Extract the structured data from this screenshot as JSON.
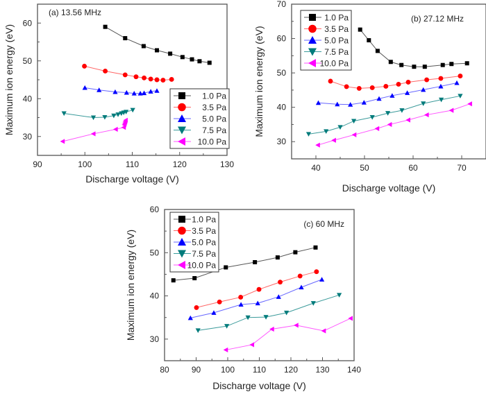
{
  "figure": {
    "series_colors": {
      "1.0 Pa": "#000000",
      "3.5 Pa": "#ff0000",
      "5.0 Pa": "#0000ff",
      "7.5 Pa": "#007b7b",
      "10.0 Pa": "#ff00ff"
    },
    "series_line_colors": {
      "1.0 Pa": "#555555",
      "3.5 Pa": "#ff6666",
      "5.0 Pa": "#6666ff",
      "7.5 Pa": "#3a9a9a",
      "10.0 Pa": "#ff55ff"
    }
  },
  "chart_data": [
    {
      "type": "line",
      "title": "(a) 13.56 MHz",
      "xlabel": "Discharge voltage (V)",
      "ylabel": "Maximum ion energy (eV)",
      "xlim": [
        90,
        130
      ],
      "ylim": [
        25,
        65
      ],
      "xticks": [
        90,
        100,
        110,
        120,
        130
      ],
      "yticks": [
        30,
        40,
        50,
        60
      ],
      "grid": false,
      "legend": "bottom-right",
      "series": [
        {
          "name": "1.0 Pa",
          "marker": "square",
          "x": [
            104.3,
            108.5,
            112.4,
            115.2,
            118.0,
            120.6,
            122.6,
            124.2,
            126.3
          ],
          "y": [
            59.0,
            56.0,
            53.9,
            52.8,
            51.9,
            51.0,
            50.4,
            49.9,
            49.5
          ]
        },
        {
          "name": "3.5 Pa",
          "marker": "circle",
          "x": [
            99.9,
            104.3,
            108.5,
            110.8,
            112.5,
            113.9,
            115.2,
            116.5,
            118.3
          ],
          "y": [
            48.6,
            47.3,
            46.3,
            45.8,
            45.5,
            45.2,
            45.0,
            44.9,
            45.1
          ]
        },
        {
          "name": "5.0 Pa",
          "marker": "triangle-up",
          "x": [
            100.0,
            103.0,
            106.4,
            108.8,
            110.4,
            111.7,
            112.5,
            113.9,
            115.2
          ],
          "y": [
            42.9,
            42.3,
            41.8,
            41.6,
            41.4,
            41.4,
            41.5,
            41.9,
            42.1
          ]
        },
        {
          "name": "7.5 Pa",
          "marker": "triangle-down",
          "x": [
            95.6,
            101.8,
            104.2,
            106.1,
            107.0,
            107.7,
            108.2,
            108.7,
            110.1
          ],
          "y": [
            36.1,
            35.0,
            35.1,
            35.5,
            35.8,
            36.1,
            36.3,
            36.5,
            37.0
          ]
        },
        {
          "name": "10.0 Pa",
          "marker": "triangle-left",
          "x": [
            95.3,
            101.8,
            106.5,
            108.2,
            108.3,
            108.4,
            108.5,
            108.6
          ],
          "y": [
            28.7,
            30.7,
            31.9,
            32.4,
            33.1,
            33.5,
            33.9,
            34.3
          ]
        }
      ]
    },
    {
      "type": "line",
      "title": "(b) 27.12 MHz",
      "xlabel": "Discharge voltage (V)",
      "ylabel": "Maximum ion energy (eV)",
      "xlim": [
        35,
        75
      ],
      "ylim": [
        25,
        70
      ],
      "xticks": [
        40,
        50,
        60,
        70
      ],
      "yticks": [
        30,
        40,
        50,
        60,
        70
      ],
      "grid": false,
      "legend": "top-left",
      "series": [
        {
          "name": "1.0 Pa",
          "marker": "square",
          "x": [
            49.1,
            50.9,
            52.7,
            55.4,
            57.6,
            60.2,
            62.4,
            66.1,
            67.9,
            71.1
          ],
          "y": [
            62.6,
            59.5,
            56.4,
            53.2,
            52.3,
            51.8,
            51.8,
            52.3,
            52.6,
            52.8
          ]
        },
        {
          "name": "3.5 Pa",
          "marker": "circle",
          "x": [
            43.0,
            46.3,
            48.9,
            51.6,
            54.4,
            57.0,
            59.0,
            62.8,
            65.7,
            69.7
          ],
          "y": [
            47.6,
            46.0,
            45.5,
            45.7,
            46.1,
            46.7,
            47.3,
            48.0,
            48.4,
            49.1
          ]
        },
        {
          "name": "5.0 Pa",
          "marker": "triangle-up",
          "x": [
            40.5,
            44.4,
            47.1,
            49.9,
            53.0,
            55.7,
            58.8,
            62.1,
            65.7,
            69.0
          ],
          "y": [
            41.3,
            40.9,
            40.8,
            41.4,
            42.5,
            43.4,
            44.2,
            45.1,
            46.1,
            47.1
          ]
        },
        {
          "name": "7.5 Pa",
          "marker": "triangle-down",
          "x": [
            38.5,
            42.1,
            45.0,
            47.8,
            51.6,
            54.8,
            57.7,
            62.1,
            65.8,
            69.7
          ],
          "y": [
            32.2,
            33.0,
            34.2,
            36.0,
            37.1,
            38.3,
            39.1,
            41.1,
            42.2,
            43.3
          ]
        },
        {
          "name": "10.0 Pa",
          "marker": "triangle-left",
          "x": [
            40.4,
            43.7,
            47.9,
            52.6,
            55.2,
            59.0,
            62.8,
            67.9,
            71.7
          ],
          "y": [
            29.0,
            30.4,
            32.0,
            33.8,
            35.0,
            36.3,
            37.8,
            39.1,
            41.0
          ]
        }
      ]
    },
    {
      "type": "line",
      "title": "(c) 60 MHz",
      "xlabel": "Discharge voltage (V)",
      "ylabel": "Maximum ion energy (eV)",
      "xlim": [
        80,
        140
      ],
      "ylim": [
        25,
        60
      ],
      "xticks": [
        80,
        90,
        100,
        110,
        120,
        130,
        140
      ],
      "yticks": [
        30,
        40,
        50,
        60
      ],
      "grid": false,
      "legend": "top-left",
      "series": [
        {
          "name": "1.0 Pa",
          "marker": "square",
          "x": [
            82.8,
            89.5,
            99.4,
            108.6,
            115.8,
            121.4,
            127.8
          ],
          "y": [
            43.6,
            44.1,
            46.6,
            47.8,
            48.9,
            50.1,
            51.2
          ]
        },
        {
          "name": "3.5 Pa",
          "marker": "circle",
          "x": [
            90.1,
            97.4,
            104.1,
            109.9,
            116.6,
            122.9,
            128.1
          ],
          "y": [
            37.3,
            38.6,
            39.7,
            41.5,
            43.2,
            44.6,
            45.6
          ]
        },
        {
          "name": "5.0 Pa",
          "marker": "triangle-up",
          "x": [
            88.2,
            95.6,
            104.2,
            109.5,
            116.1,
            123.3,
            129.8
          ],
          "y": [
            34.9,
            36.1,
            38.0,
            38.3,
            39.8,
            42.0,
            43.8
          ]
        },
        {
          "name": "7.5 Pa",
          "marker": "triangle-down",
          "x": [
            90.6,
            99.7,
            106.4,
            112.1,
            118.6,
            127.1,
            135.3
          ],
          "y": [
            32.0,
            33.0,
            35.0,
            35.1,
            36.1,
            38.3,
            40.2
          ]
        },
        {
          "name": "10.0 Pa",
          "marker": "triangle-left",
          "x": [
            99.4,
            107.7,
            114.0,
            121.7,
            130.4,
            138.9
          ],
          "y": [
            27.5,
            28.7,
            32.3,
            33.2,
            31.9,
            34.8
          ]
        }
      ]
    }
  ]
}
